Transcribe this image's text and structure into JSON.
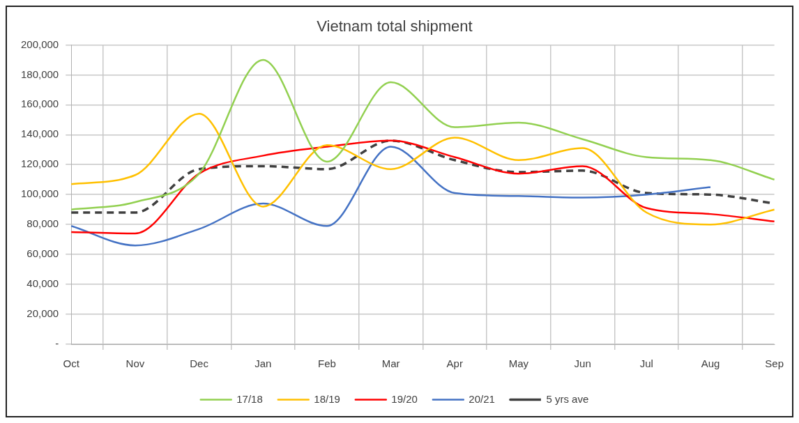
{
  "chart_data": {
    "type": "line",
    "title": "Vietnam total shipment",
    "categories": [
      "Oct",
      "Nov",
      "Dec",
      "Jan",
      "Feb",
      "Mar",
      "Apr",
      "May",
      "Jun",
      "Jul",
      "Aug",
      "Sep"
    ],
    "series": [
      {
        "name": "17/18",
        "color": "#92d050",
        "values": [
          90000,
          95000,
          114000,
          190000,
          122000,
          175000,
          145000,
          148000,
          137000,
          125000,
          123000,
          110000
        ]
      },
      {
        "name": "18/19",
        "color": "#ffc000",
        "values": [
          107000,
          113000,
          154000,
          92000,
          133000,
          117000,
          138000,
          123000,
          131000,
          88000,
          80000,
          90000
        ]
      },
      {
        "name": "19/20",
        "color": "#ff0000",
        "values": [
          75000,
          74000,
          114000,
          126000,
          132000,
          136000,
          125000,
          114000,
          119000,
          91000,
          87000,
          82000
        ]
      },
      {
        "name": "20/21",
        "color": "#4472c4",
        "values": [
          79000,
          66000,
          77000,
          94000,
          79000,
          132000,
          101000,
          99000,
          98000,
          100000,
          105000,
          null
        ]
      },
      {
        "name": "5 yrs ave",
        "color": "#404040",
        "line_style": "dashed",
        "values": [
          88000,
          88000,
          117000,
          119000,
          117000,
          136000,
          123000,
          115000,
          116000,
          101000,
          100000,
          94000
        ]
      }
    ],
    "ylim": [
      0,
      200000
    ],
    "yticks": [
      {
        "value": 0,
        "label": "-"
      },
      {
        "value": 20000,
        "label": "20,000"
      },
      {
        "value": 40000,
        "label": "40,000"
      },
      {
        "value": 60000,
        "label": "60,000"
      },
      {
        "value": 80000,
        "label": "80,000"
      },
      {
        "value": 100000,
        "label": "100,000"
      },
      {
        "value": 120000,
        "label": "120,000"
      },
      {
        "value": 140000,
        "label": "140,000"
      },
      {
        "value": 160000,
        "label": "160,000"
      },
      {
        "value": 180000,
        "label": "180,000"
      },
      {
        "value": 200000,
        "label": "200,000"
      }
    ],
    "grid": true,
    "legend": "bottom",
    "marker": "none",
    "line_style": "solid"
  }
}
